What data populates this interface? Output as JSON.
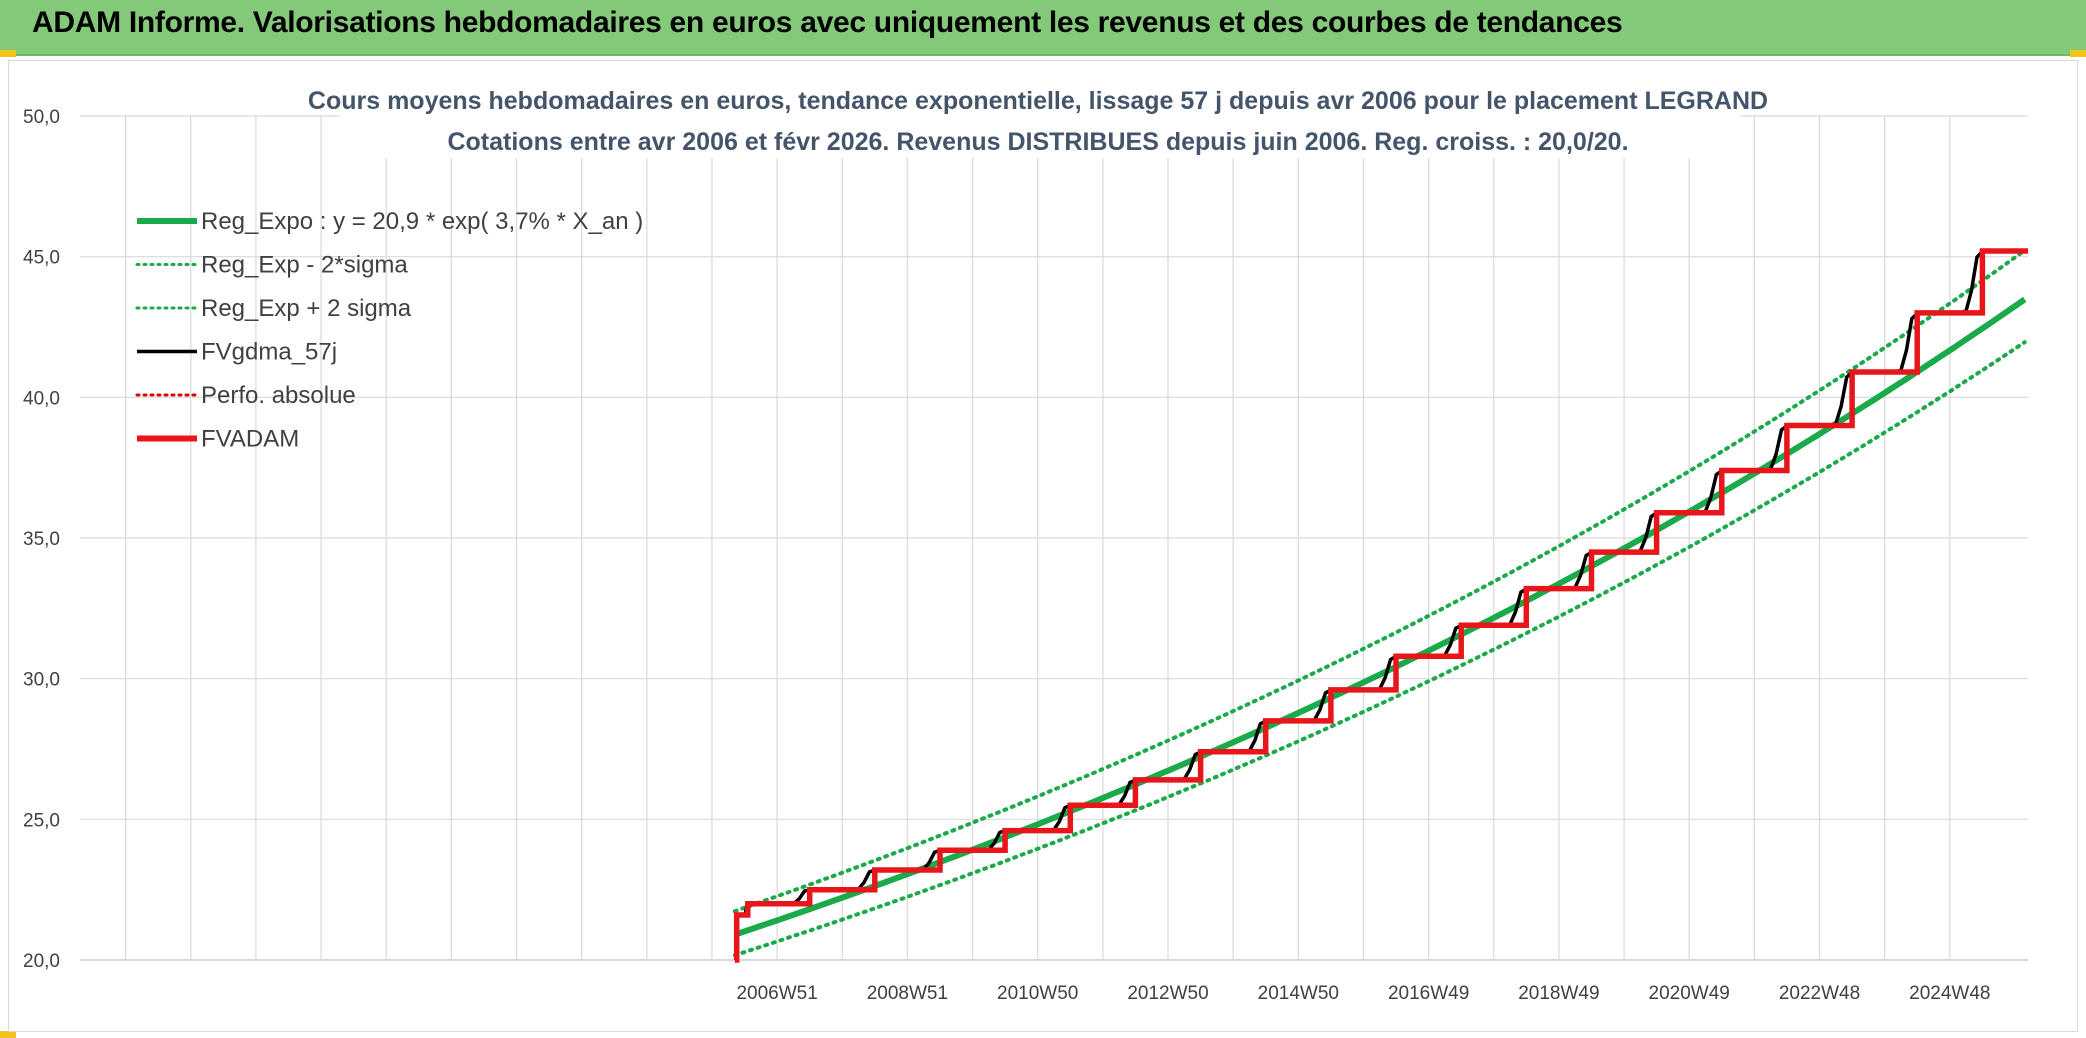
{
  "banner": {
    "title": "ADAM Informe. Valorisations hebdomadaires en euros avec uniquement les revenus et des courbes de tendances"
  },
  "colors": {
    "banner_bg": "#84c97a",
    "trend": "#1aaa4a",
    "band": "#1aaa4a",
    "fv_smooth": "#000000",
    "perfo": "#e00000",
    "fvadam": "#e8161b",
    "grid": "#d9d9d9"
  },
  "chart_data": {
    "type": "line",
    "title": "Cours moyens hebdomadaires en euros, tendance exponentielle, lissage 57 j depuis avr 2006 pour le placement LEGRAND",
    "subtitle": "Cotations entre avr 2006 et févr 2026. Revenus DISTRIBUES depuis juin 2006. Reg. croiss. : 20,0/20.",
    "ylim": [
      20,
      50
    ],
    "y_ticks": [
      "20,0",
      "25,0",
      "30,0",
      "35,0",
      "40,0",
      "45,0",
      "50,0"
    ],
    "x_ticks": [
      "2006W51",
      "2008W51",
      "2010W50",
      "2012W50",
      "2014W50",
      "2016W49",
      "2018W49",
      "2020W49",
      "2022W48",
      "2024W48"
    ],
    "x_range_years": [
      1996.25,
      2026.15
    ],
    "grid": true,
    "legend_position": "top-left",
    "trend_model": {
      "a": 20.9,
      "rate": 0.037,
      "start_year": 2006.3,
      "sigma_band_low_factor": 0.965,
      "sigma_band_high_factor": 1.04
    },
    "series": [
      {
        "name": "Reg_Expo : y = 20,9 * exp( 3,7% *  X_an )",
        "style": "solid-thick",
        "color": "#1aaa4a"
      },
      {
        "name": "Reg_Exp - 2*sigma",
        "style": "dotted",
        "color": "#1aaa4a"
      },
      {
        "name": "Reg_Exp + 2 sigma",
        "style": "dotted",
        "color": "#1aaa4a"
      },
      {
        "name": "FVgdma_57j",
        "style": "solid",
        "color": "#000000"
      },
      {
        "name": "Perfo. absolue",
        "style": "dotted",
        "color": "#e00000"
      },
      {
        "name": "FVADAM",
        "style": "solid-thick",
        "color": "#e8161b"
      }
    ],
    "fvadam_steps": [
      {
        "year": 2006.3,
        "value": 20.0
      },
      {
        "year": 2006.33,
        "value": 21.6
      },
      {
        "year": 2006.5,
        "value": 22.0
      },
      {
        "year": 2007.45,
        "value": 22.5
      },
      {
        "year": 2008.45,
        "value": 23.2
      },
      {
        "year": 2009.45,
        "value": 23.9
      },
      {
        "year": 2010.45,
        "value": 24.6
      },
      {
        "year": 2011.45,
        "value": 25.5
      },
      {
        "year": 2012.45,
        "value": 26.4
      },
      {
        "year": 2013.45,
        "value": 27.4
      },
      {
        "year": 2014.45,
        "value": 28.5
      },
      {
        "year": 2015.45,
        "value": 29.6
      },
      {
        "year": 2016.45,
        "value": 30.8
      },
      {
        "year": 2017.45,
        "value": 31.9
      },
      {
        "year": 2018.45,
        "value": 33.2
      },
      {
        "year": 2019.45,
        "value": 34.5
      },
      {
        "year": 2020.45,
        "value": 35.9
      },
      {
        "year": 2021.45,
        "value": 37.4
      },
      {
        "year": 2022.45,
        "value": 39.0
      },
      {
        "year": 2023.45,
        "value": 40.9
      },
      {
        "year": 2024.45,
        "value": 43.0
      },
      {
        "year": 2025.45,
        "value": 45.2
      },
      {
        "year": 2026.15,
        "value": 45.2
      }
    ]
  }
}
